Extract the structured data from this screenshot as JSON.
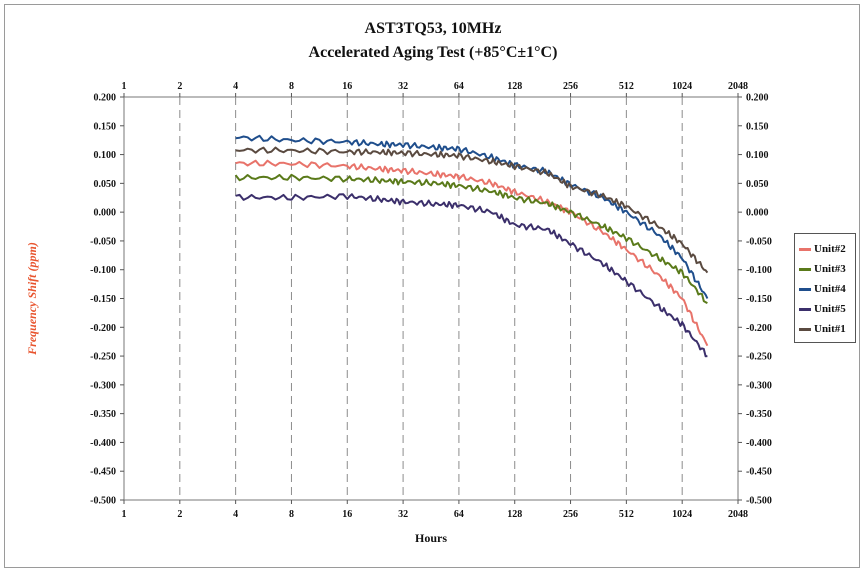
{
  "chart_data": {
    "type": "line",
    "title": "AST3TQ53, 10MHz",
    "subtitle": "Accelerated Aging Test (+85°C±1°C)",
    "xlabel": "Hours",
    "ylabel": "Frequency Shift (ppm)",
    "x_scale": "log2",
    "xlim": [
      1,
      2048
    ],
    "ylim": [
      -0.5,
      0.2
    ],
    "x_ticks": [
      "1",
      "2",
      "4",
      "8",
      "16",
      "32",
      "64",
      "128",
      "256",
      "512",
      "1024",
      "2048"
    ],
    "y_ticks": [
      "0.200",
      "0.150",
      "0.100",
      "0.050",
      "0.000",
      "-0.050",
      "-0.100",
      "-0.150",
      "-0.200",
      "-0.250",
      "-0.300",
      "-0.350",
      "-0.400",
      "-0.450",
      "-0.500"
    ],
    "grid": "vertical dashed",
    "legend_position": "right",
    "series": [
      {
        "name": "Unit#2",
        "color": "#e8736a",
        "x": [
          4,
          8,
          16,
          24,
          32,
          48,
          64,
          96,
          128,
          192,
          256,
          384,
          512,
          768,
          1024,
          1400
        ],
        "y": [
          0.085,
          0.084,
          0.08,
          0.075,
          0.072,
          0.066,
          0.062,
          0.05,
          0.035,
          0.018,
          0.0,
          -0.035,
          -0.065,
          -0.11,
          -0.15,
          -0.232
        ]
      },
      {
        "name": "Unit#3",
        "color": "#5a7a1a",
        "x": [
          4,
          8,
          16,
          24,
          32,
          48,
          64,
          96,
          128,
          192,
          256,
          384,
          512,
          768,
          1024,
          1400
        ],
        "y": [
          0.06,
          0.06,
          0.058,
          0.055,
          0.053,
          0.05,
          0.046,
          0.036,
          0.025,
          0.015,
          0.0,
          -0.025,
          -0.045,
          -0.08,
          -0.105,
          -0.158
        ]
      },
      {
        "name": "Unit#4",
        "color": "#1f4e8c",
        "x": [
          4,
          8,
          16,
          24,
          32,
          48,
          64,
          96,
          128,
          192,
          256,
          384,
          512,
          768,
          1024,
          1400
        ],
        "y": [
          0.13,
          0.125,
          0.122,
          0.118,
          0.117,
          0.112,
          0.11,
          0.095,
          0.082,
          0.07,
          0.048,
          0.025,
          0.0,
          -0.04,
          -0.08,
          -0.15
        ]
      },
      {
        "name": "Unit#5",
        "color": "#3b2f6b",
        "x": [
          4,
          8,
          16,
          24,
          32,
          48,
          64,
          96,
          128,
          192,
          256,
          384,
          512,
          768,
          1024,
          1400
        ],
        "y": [
          0.026,
          0.025,
          0.028,
          0.022,
          0.018,
          0.014,
          0.012,
          0.0,
          -0.022,
          -0.03,
          -0.055,
          -0.09,
          -0.12,
          -0.165,
          -0.195,
          -0.25
        ]
      },
      {
        "name": "Unit#1",
        "color": "#5a4a40",
        "x": [
          4,
          8,
          16,
          24,
          32,
          48,
          64,
          96,
          128,
          192,
          256,
          384,
          512,
          768,
          1024,
          1400
        ],
        "y": [
          0.108,
          0.107,
          0.105,
          0.104,
          0.103,
          0.1,
          0.098,
          0.088,
          0.08,
          0.068,
          0.045,
          0.028,
          0.01,
          -0.025,
          -0.055,
          -0.105
        ]
      }
    ]
  }
}
